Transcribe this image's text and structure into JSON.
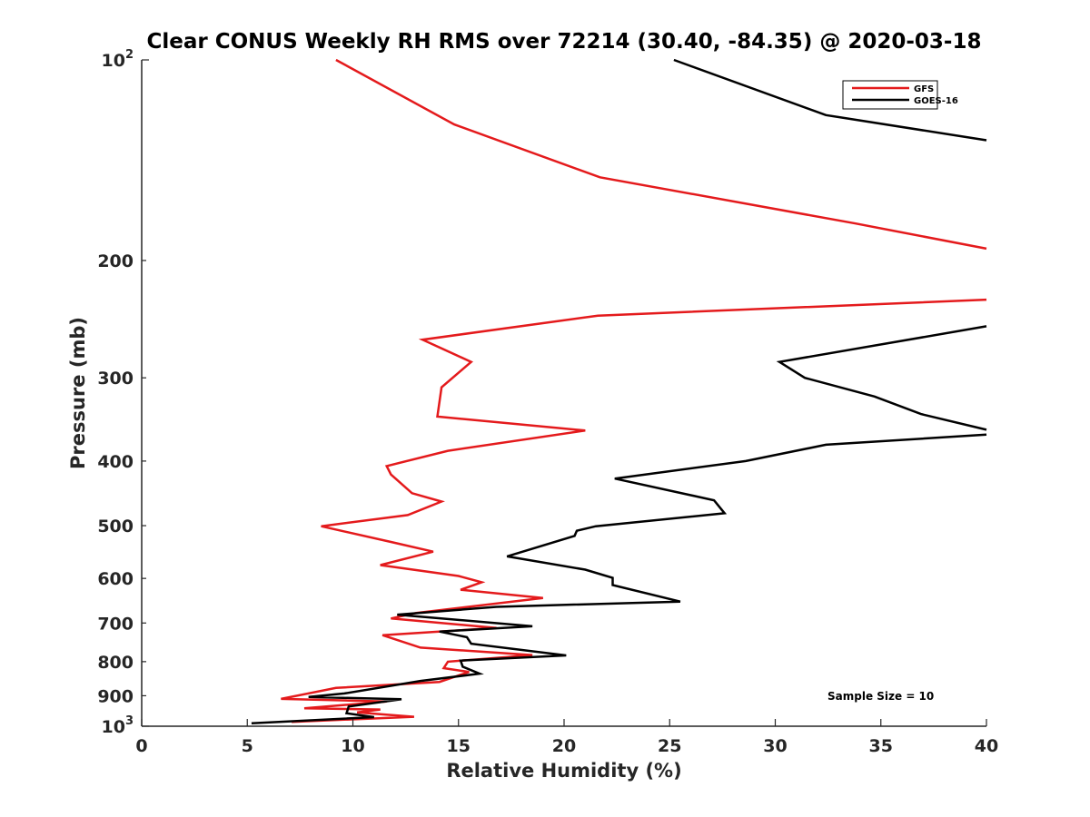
{
  "chart_data": {
    "type": "line",
    "title": "Clear CONUS Weekly RH RMS over 72214 (30.40, -84.35) @ 2020-03-18",
    "xlabel": "Relative Humidity (%)",
    "ylabel": "Pressure (mb)",
    "xlim": [
      0,
      40
    ],
    "ylim": [
      100,
      1000
    ],
    "yscale": "log",
    "y_reversed": true,
    "grid": false,
    "x_ticks": [
      0,
      5,
      10,
      15,
      20,
      25,
      30,
      35,
      40
    ],
    "x_tick_labels": [
      "0",
      "5",
      "10",
      "15",
      "20",
      "25",
      "30",
      "35",
      "40"
    ],
    "y_ticks": [
      100,
      200,
      300,
      400,
      500,
      600,
      700,
      800,
      900,
      1000
    ],
    "y_tick_labels": [
      {
        "base": "10",
        "sup": "2"
      },
      {
        "base": "200",
        "sup": ""
      },
      {
        "base": "300",
        "sup": ""
      },
      {
        "base": "400",
        "sup": ""
      },
      {
        "base": "500",
        "sup": ""
      },
      {
        "base": "600",
        "sup": ""
      },
      {
        "base": "700",
        "sup": ""
      },
      {
        "base": "800",
        "sup": ""
      },
      {
        "base": "900",
        "sup": ""
      },
      {
        "base": "10",
        "sup": "3"
      }
    ],
    "legend_position": "top-right",
    "annotation": "Sample Size = 10",
    "series": [
      {
        "name": "GFS",
        "color": "#e41a1c",
        "x": [
          9.2,
          14.8,
          21.7,
          33.8,
          40.0,
          null,
          40.0,
          21.6,
          13.3,
          15.6,
          14.2,
          14.0,
          21.0,
          14.5,
          11.6,
          11.8,
          12.8,
          14.2,
          12.6,
          8.5,
          11.8,
          13.8,
          11.3,
          15.0,
          16.1,
          15.1,
          19.0,
          13.0,
          11.8,
          16.8,
          11.4,
          13.2,
          18.5,
          14.5,
          14.3,
          15.5,
          14.1,
          9.2,
          6.6,
          11.6,
          7.7,
          11.3,
          10.2,
          12.9,
          7.1
        ],
        "y": [
          100,
          125,
          150,
          176,
          192,
          null,
          229,
          242,
          263,
          284,
          310,
          343,
          360,
          386,
          407,
          419,
          447,
          460,
          482,
          501,
          529,
          547,
          573,
          595,
          608,
          624,
          642,
          676,
          689,
          712,
          730,
          762,
          782,
          800,
          818,
          829,
          858,
          876,
          910,
          918,
          940,
          944,
          953,
          968,
          985
        ]
      },
      {
        "name": "GOES-16",
        "color": "#000000",
        "x": [
          25.2,
          32.4,
          40.0,
          null,
          40.0,
          30.2,
          31.4,
          34.7,
          36.9,
          40.0,
          null,
          40.0,
          32.4,
          28.6,
          22.4,
          27.1,
          27.6,
          21.5,
          20.6,
          20.5,
          17.3,
          21.0,
          22.3,
          22.3,
          25.5,
          16.8,
          12.1,
          18.5,
          14.1,
          15.4,
          15.6,
          20.1,
          15.1,
          15.2,
          16.0,
          13.2,
          9.6,
          7.9,
          12.3,
          9.8,
          9.7,
          11.0,
          5.2
        ],
        "y": [
          100,
          121,
          132,
          null,
          251,
          284,
          300,
          320,
          340,
          359,
          null,
          365,
          378,
          400,
          425,
          458,
          479,
          501,
          509,
          518,
          556,
          582,
          599,
          614,
          650,
          662,
          680,
          708,
          721,
          735,
          752,
          783,
          797,
          814,
          834,
          855,
          893,
          904,
          911,
          934,
          956,
          969,
          990
        ]
      }
    ]
  }
}
